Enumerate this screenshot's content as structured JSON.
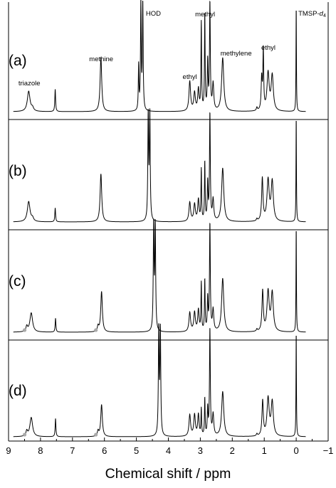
{
  "chart_data": {
    "type": "line",
    "xlabel": "Chemical shift / ppm",
    "ylabel": "",
    "xlim": [
      9,
      -1
    ],
    "x_reversed": true,
    "grid": false,
    "xticks": [
      9,
      8,
      7,
      6,
      5,
      4,
      3,
      2,
      1,
      0,
      -1
    ],
    "xtick_labels": [
      "9",
      "8",
      "7",
      "6",
      "5",
      "4",
      "3",
      "2",
      "1",
      "0",
      "−1"
    ],
    "stack": "vertical, offset spectra",
    "line_color": "#000000",
    "marker_color": "#a9a9a9",
    "peak_labels": [
      {
        "text": "triazole",
        "ppm": 8.35
      },
      {
        "text": "methine",
        "ppm": 6.1
      },
      {
        "text": "HOD",
        "ppm": 4.85
      },
      {
        "text": "methyl",
        "ppm": 2.85
      },
      {
        "text": "ethyl",
        "ppm": 3.33
      },
      {
        "text": "methylene",
        "ppm": 2.3
      },
      {
        "text": "ethyl",
        "ppm": 1.05
      },
      {
        "text": "TMSP-",
        "suffix": "d",
        "subscript": "4",
        "ppm": 0.0
      }
    ],
    "series": [
      {
        "name": "(a)",
        "peaks": [
          {
            "ppm": 8.37,
            "height": 0.19,
            "width": 0.05
          },
          {
            "ppm": 8.25,
            "height": 0.03,
            "width": 0.04
          },
          {
            "ppm": 7.54,
            "height": 0.21,
            "width": 0.014
          },
          {
            "ppm": 6.11,
            "height": 0.51,
            "width": 0.03
          },
          {
            "ppm": 4.93,
            "height": 0.42,
            "width": 0.012
          },
          {
            "ppm": 4.86,
            "height": 1.0,
            "width": 0.014
          },
          {
            "ppm": 4.8,
            "height": 1.0,
            "width": 0.014
          },
          {
            "ppm": 3.33,
            "height": 0.28,
            "width": 0.03
          },
          {
            "ppm": 3.18,
            "height": 0.17,
            "width": 0.03
          },
          {
            "ppm": 3.06,
            "height": 0.2,
            "width": 0.025
          },
          {
            "ppm": 2.97,
            "height": 0.82,
            "width": 0.012
          },
          {
            "ppm": 2.86,
            "height": 0.9,
            "width": 0.012
          },
          {
            "ppm": 2.77,
            "height": 0.45,
            "width": 0.015
          },
          {
            "ppm": 2.7,
            "height": 1.0,
            "width": 0.015
          },
          {
            "ppm": 2.6,
            "height": 0.25,
            "width": 0.025
          },
          {
            "ppm": 2.3,
            "height": 0.5,
            "width": 0.04
          },
          {
            "ppm": 1.23,
            "height": 0.03,
            "width": 0.02
          },
          {
            "ppm": 1.08,
            "height": 0.3,
            "width": 0.02
          },
          {
            "ppm": 1.03,
            "height": 0.55,
            "width": 0.015
          },
          {
            "ppm": 0.88,
            "height": 0.35,
            "width": 0.04
          },
          {
            "ppm": 0.75,
            "height": 0.33,
            "width": 0.04
          },
          {
            "ppm": 0.0,
            "height": 1.0,
            "width": 0.008
          }
        ],
        "grey_dots": []
      },
      {
        "name": "(b)",
        "peaks": [
          {
            "ppm": 8.37,
            "height": 0.19,
            "width": 0.05
          },
          {
            "ppm": 8.25,
            "height": 0.03,
            "width": 0.04
          },
          {
            "ppm": 7.54,
            "height": 0.13,
            "width": 0.014
          },
          {
            "ppm": 6.11,
            "height": 0.45,
            "width": 0.03
          },
          {
            "ppm": 4.63,
            "height": 1.0,
            "width": 0.015
          },
          {
            "ppm": 4.58,
            "height": 1.0,
            "width": 0.015
          },
          {
            "ppm": 3.33,
            "height": 0.18,
            "width": 0.03
          },
          {
            "ppm": 3.18,
            "height": 0.16,
            "width": 0.03
          },
          {
            "ppm": 3.06,
            "height": 0.2,
            "width": 0.025
          },
          {
            "ppm": 2.97,
            "height": 0.48,
            "width": 0.012
          },
          {
            "ppm": 2.86,
            "height": 0.55,
            "width": 0.012
          },
          {
            "ppm": 2.77,
            "height": 0.35,
            "width": 0.015
          },
          {
            "ppm": 2.7,
            "height": 1.0,
            "width": 0.015
          },
          {
            "ppm": 2.6,
            "height": 0.2,
            "width": 0.025
          },
          {
            "ppm": 2.3,
            "height": 0.5,
            "width": 0.04
          },
          {
            "ppm": 1.23,
            "height": 0.02,
            "width": 0.02
          },
          {
            "ppm": 1.06,
            "height": 0.4,
            "width": 0.025
          },
          {
            "ppm": 0.88,
            "height": 0.38,
            "width": 0.04
          },
          {
            "ppm": 0.75,
            "height": 0.37,
            "width": 0.04
          },
          {
            "ppm": 0.0,
            "height": 1.0,
            "width": 0.008
          }
        ],
        "grey_dots": []
      },
      {
        "name": "(c)",
        "peaks": [
          {
            "ppm": 8.43,
            "height": 0.05,
            "width": 0.03
          },
          {
            "ppm": 8.29,
            "height": 0.18,
            "width": 0.05
          },
          {
            "ppm": 7.53,
            "height": 0.13,
            "width": 0.014
          },
          {
            "ppm": 6.2,
            "height": 0.05,
            "width": 0.025
          },
          {
            "ppm": 6.09,
            "height": 0.38,
            "width": 0.03
          },
          {
            "ppm": 4.46,
            "height": 1.0,
            "width": 0.015
          },
          {
            "ppm": 4.41,
            "height": 1.0,
            "width": 0.015
          },
          {
            "ppm": 3.33,
            "height": 0.18,
            "width": 0.03
          },
          {
            "ppm": 3.18,
            "height": 0.18,
            "width": 0.03
          },
          {
            "ppm": 3.06,
            "height": 0.2,
            "width": 0.025
          },
          {
            "ppm": 2.97,
            "height": 0.45,
            "width": 0.012
          },
          {
            "ppm": 2.86,
            "height": 0.48,
            "width": 0.012
          },
          {
            "ppm": 2.77,
            "height": 0.3,
            "width": 0.015
          },
          {
            "ppm": 2.7,
            "height": 1.0,
            "width": 0.015
          },
          {
            "ppm": 2.6,
            "height": 0.2,
            "width": 0.025
          },
          {
            "ppm": 2.3,
            "height": 0.5,
            "width": 0.04
          },
          {
            "ppm": 1.23,
            "height": 0.02,
            "width": 0.02
          },
          {
            "ppm": 1.05,
            "height": 0.38,
            "width": 0.025
          },
          {
            "ppm": 0.88,
            "height": 0.37,
            "width": 0.04
          },
          {
            "ppm": 0.75,
            "height": 0.36,
            "width": 0.04
          },
          {
            "ppm": 0.0,
            "height": 1.0,
            "width": 0.008
          }
        ],
        "grey_dots": [
          8.43,
          6.2
        ]
      },
      {
        "name": "(d)",
        "peaks": [
          {
            "ppm": 8.43,
            "height": 0.05,
            "width": 0.03
          },
          {
            "ppm": 8.29,
            "height": 0.18,
            "width": 0.05
          },
          {
            "ppm": 7.53,
            "height": 0.17,
            "width": 0.014
          },
          {
            "ppm": 6.2,
            "height": 0.05,
            "width": 0.025
          },
          {
            "ppm": 6.09,
            "height": 0.3,
            "width": 0.03
          },
          {
            "ppm": 4.3,
            "height": 1.0,
            "width": 0.015
          },
          {
            "ppm": 4.25,
            "height": 1.0,
            "width": 0.015
          },
          {
            "ppm": 3.33,
            "height": 0.2,
            "width": 0.03
          },
          {
            "ppm": 3.18,
            "height": 0.2,
            "width": 0.03
          },
          {
            "ppm": 3.06,
            "height": 0.2,
            "width": 0.025
          },
          {
            "ppm": 2.97,
            "height": 0.25,
            "width": 0.012
          },
          {
            "ppm": 2.86,
            "height": 0.35,
            "width": 0.012
          },
          {
            "ppm": 2.77,
            "height": 0.25,
            "width": 0.015
          },
          {
            "ppm": 2.7,
            "height": 1.0,
            "width": 0.015
          },
          {
            "ppm": 2.6,
            "height": 0.2,
            "width": 0.025
          },
          {
            "ppm": 2.3,
            "height": 0.42,
            "width": 0.04
          },
          {
            "ppm": 1.23,
            "height": 0.02,
            "width": 0.02
          },
          {
            "ppm": 1.05,
            "height": 0.33,
            "width": 0.025
          },
          {
            "ppm": 0.88,
            "height": 0.35,
            "width": 0.04
          },
          {
            "ppm": 0.75,
            "height": 0.32,
            "width": 0.04
          },
          {
            "ppm": 0.0,
            "height": 1.0,
            "width": 0.008
          }
        ],
        "grey_dots": [
          8.43,
          6.2
        ]
      }
    ]
  }
}
